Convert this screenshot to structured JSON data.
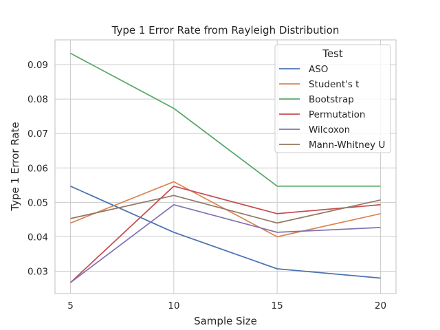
{
  "chart_data": {
    "type": "line",
    "title": "Type 1 Error Rate from Rayleigh Distribution",
    "xlabel": "Sample Size",
    "ylabel": "Type 1 Error Rate",
    "x": [
      5,
      10,
      15,
      20
    ],
    "x_ticks": [
      "5",
      "10",
      "15",
      "20"
    ],
    "y_ticks": [
      "0.03",
      "0.04",
      "0.05",
      "0.06",
      "0.07",
      "0.08",
      "0.09"
    ],
    "ylim": [
      0.0235,
      0.0972
    ],
    "xlim": [
      4.25,
      20.75
    ],
    "grid": true,
    "legend": {
      "title": "Test",
      "placement": "top-right"
    },
    "series": [
      {
        "name": "ASO",
        "color": "#4c72b0",
        "values": [
          0.0547,
          0.0413,
          0.0307,
          0.028
        ]
      },
      {
        "name": "Student's t",
        "color": "#dd8452",
        "values": [
          0.044,
          0.056,
          0.04,
          0.0467
        ]
      },
      {
        "name": "Bootstrap",
        "color": "#55a868",
        "values": [
          0.0933,
          0.0773,
          0.0547,
          0.0547
        ]
      },
      {
        "name": "Permutation",
        "color": "#c44e52",
        "values": [
          0.0267,
          0.0547,
          0.0467,
          0.0493
        ]
      },
      {
        "name": "Wilcoxon",
        "color": "#8172b3",
        "values": [
          0.0267,
          0.0493,
          0.0413,
          0.0427
        ]
      },
      {
        "name": "Mann-Whitney U",
        "color": "#937860",
        "values": [
          0.0453,
          0.052,
          0.044,
          0.0507
        ]
      }
    ]
  }
}
